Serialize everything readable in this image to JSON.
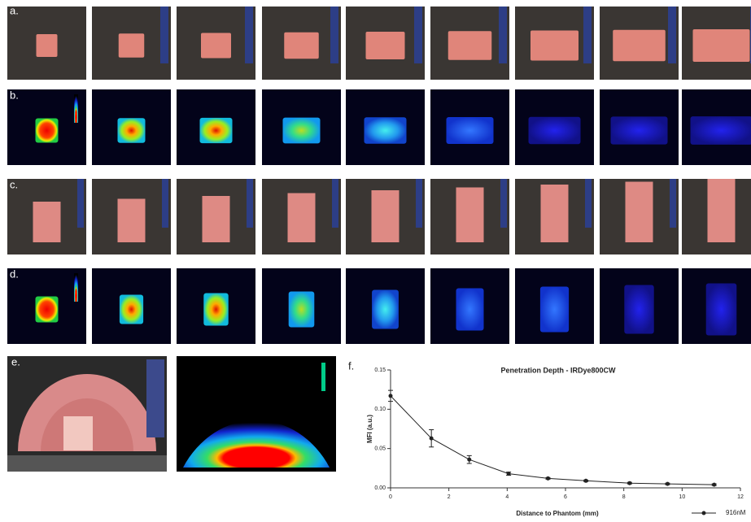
{
  "panel_labels": [
    "a.",
    "b.",
    "c.",
    "d.",
    "e.",
    "f."
  ],
  "chart_data": {
    "type": "line",
    "title": "Penetration Depth - IRDye800CW",
    "x_label": "Distance to Phantom (mm)",
    "y_label": "MFI (a.u.)",
    "x": [
      0,
      1.4,
      2.7,
      4.05,
      5.4,
      6.7,
      8.2,
      9.5,
      11.1
    ],
    "series": [
      {
        "name": "916nM",
        "color": "#222222",
        "values": [
          0.117,
          0.063,
          0.036,
          0.018,
          0.012,
          0.009,
          0.006,
          0.005,
          0.004
        ],
        "errors": [
          0.007,
          0.011,
          0.005,
          0.002,
          0.001,
          0.001,
          0.001,
          0.001,
          0.001
        ]
      }
    ],
    "xlim": [
      0,
      12
    ],
    "xticks": [
      0,
      2,
      4,
      6,
      8,
      10,
      12
    ],
    "ylim": [
      0,
      0.15
    ],
    "yticks": [
      {
        "value": 0,
        "label": "0.00"
      },
      {
        "value": 0.05,
        "label": "0.05"
      },
      {
        "value": 0.1,
        "label": "0.10"
      },
      {
        "value": 0.15,
        "label": "0.15"
      }
    ],
    "legend": "bottom-right"
  }
}
